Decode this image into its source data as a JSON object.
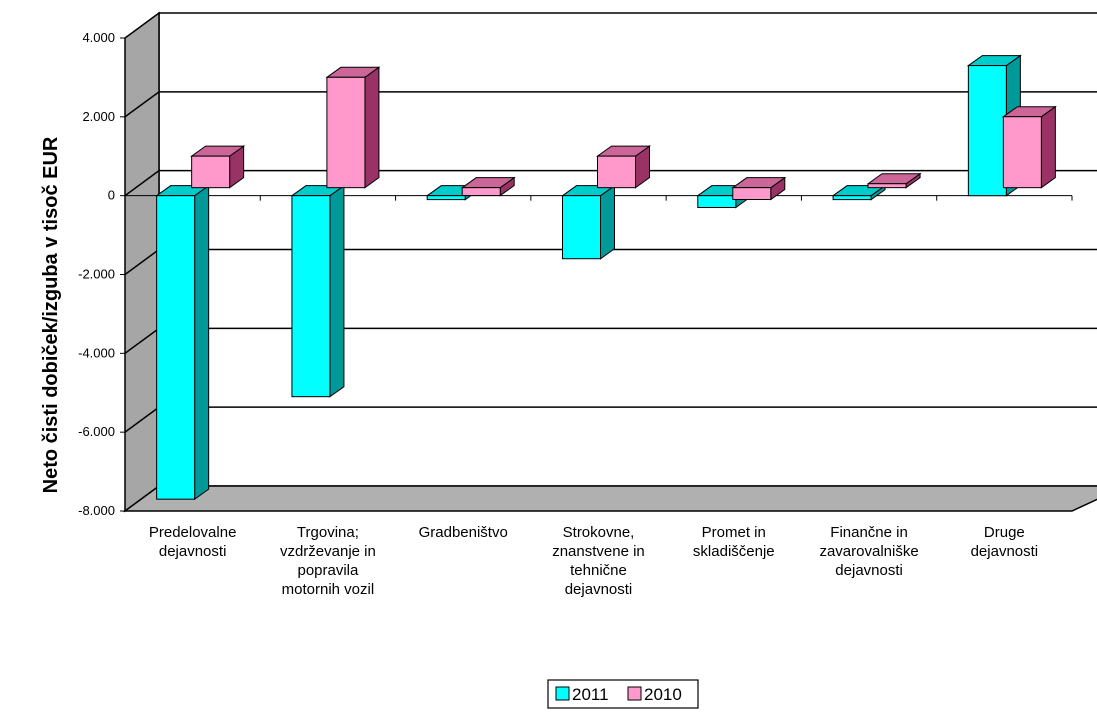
{
  "chart_data": {
    "type": "bar",
    "ylabel": "Neto čisti dobiček/izguba  v tisoč EUR",
    "xlabel": "",
    "title": "",
    "ylim": [
      -8000,
      4000
    ],
    "yticks": [
      4000,
      2000,
      0,
      -2000,
      -4000,
      -6000,
      -8000
    ],
    "ytick_labels": [
      "4.000",
      "2.000",
      "0",
      "-2.000",
      "-4.000",
      "-6.000",
      "-8.000"
    ],
    "categories": [
      [
        "Predelovalne",
        "dejavnosti"
      ],
      [
        "Trgovina;",
        "vzdrževanje in",
        "popravila",
        "motornih vozil"
      ],
      [
        "Gradbeništvo"
      ],
      [
        "Strokovne,",
        "znanstvene in",
        "tehnične",
        "dejavnosti"
      ],
      [
        "Promet in",
        "skladiščenje"
      ],
      [
        "Finančne in",
        "zavarovalniške",
        "dejavnosti"
      ],
      [
        "Druge",
        "dejavnosti"
      ]
    ],
    "series": [
      {
        "name": "2011",
        "color": "#00ffff",
        "side_color": "#009999",
        "top_color": "#00cccc",
        "values": [
          -7700,
          -5100,
          -100,
          -1600,
          -300,
          -100,
          3300
        ]
      },
      {
        "name": "2010",
        "color": "#ff99cc",
        "side_color": "#993366",
        "top_color": "#cc6699",
        "values": [
          800,
          2800,
          -200,
          800,
          -300,
          100,
          1800
        ]
      }
    ],
    "legend": "bottom-center",
    "grid": true
  }
}
